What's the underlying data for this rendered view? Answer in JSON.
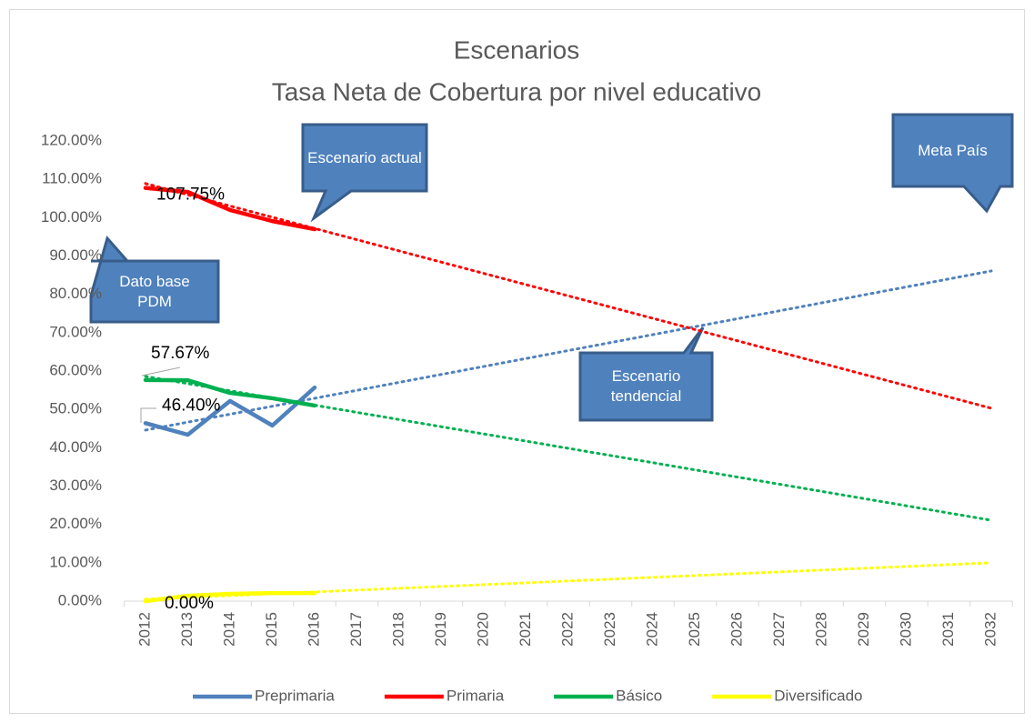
{
  "chart_data": {
    "type": "line",
    "title": "Escenarios",
    "subtitle": "Tasa Neta de Cobertura por nivel educativo",
    "categories": [
      "2012",
      "2013",
      "2014",
      "2015",
      "2016",
      "2017",
      "2018",
      "2019",
      "2020",
      "2021",
      "2022",
      "2023",
      "2024",
      "2025",
      "2026",
      "2027",
      "2028",
      "2029",
      "2030",
      "2031",
      "2032"
    ],
    "ylim": [
      0,
      120
    ],
    "yticks": [
      {
        "value": 0,
        "label": "0.00%"
      },
      {
        "value": 10,
        "label": "10.00%"
      },
      {
        "value": 20,
        "label": "20.00%"
      },
      {
        "value": 30,
        "label": "30.00%"
      },
      {
        "value": 40,
        "label": "40.00%"
      },
      {
        "value": 50,
        "label": "50.00%"
      },
      {
        "value": 60,
        "label": "60.00%"
      },
      {
        "value": 70,
        "label": "70.00%"
      },
      {
        "value": 80,
        "label": "80.00%"
      },
      {
        "value": 90,
        "label": "90.00%"
      },
      {
        "value": 100,
        "label": "100.00%"
      },
      {
        "value": 110,
        "label": "110.00%"
      },
      {
        "value": 120,
        "label": "120.00%"
      }
    ],
    "grid": false,
    "legend": "bottom",
    "series": [
      {
        "name": "Preprimaria",
        "color": "#4f81bd",
        "values": [
          46.4,
          43.4,
          52.2,
          45.8,
          55.7,
          null,
          null,
          null,
          null,
          null,
          null,
          null,
          null,
          null,
          null,
          null,
          null,
          null,
          null,
          null,
          null
        ],
        "value_labels": [
          "46.40%",
          null,
          null,
          null,
          null,
          null,
          null,
          null,
          null,
          null,
          null,
          null,
          null,
          null,
          null,
          null,
          null,
          null,
          null,
          null,
          null
        ],
        "trend": [
          44.6,
          86.1
        ]
      },
      {
        "name": "Primaria",
        "color": "#ff0000",
        "values": [
          107.75,
          106.7,
          102,
          99.1,
          97,
          null,
          null,
          null,
          null,
          null,
          null,
          null,
          null,
          null,
          null,
          null,
          null,
          null,
          null,
          null,
          null
        ],
        "value_labels": [
          "107.75%",
          null,
          null,
          null,
          null,
          null,
          null,
          null,
          null,
          null,
          null,
          null,
          null,
          null,
          null,
          null,
          null,
          null,
          null,
          null,
          null
        ],
        "trend": [
          108.9,
          50.3
        ]
      },
      {
        "name": "Básico",
        "color": "#00b050",
        "values": [
          57.67,
          57.6,
          54.3,
          52.9,
          51,
          null,
          null,
          null,
          null,
          null,
          null,
          null,
          null,
          null,
          null,
          null,
          null,
          null,
          null,
          null,
          null
        ],
        "value_labels": [
          "57.67%",
          null,
          null,
          null,
          null,
          null,
          null,
          null,
          null,
          null,
          null,
          null,
          null,
          null,
          null,
          null,
          null,
          null,
          null,
          null,
          null
        ],
        "trend": [
          58.6,
          21.1
        ]
      },
      {
        "name": "Diversificado",
        "color": "#ffff00",
        "values": [
          0,
          1.4,
          1.9,
          2.1,
          2.1,
          null,
          null,
          null,
          null,
          null,
          null,
          null,
          null,
          null,
          null,
          null,
          null,
          null,
          null,
          null,
          null
        ],
        "value_labels": [
          "0.00%",
          null,
          null,
          null,
          null,
          null,
          null,
          null,
          null,
          null,
          null,
          null,
          null,
          null,
          null,
          null,
          null,
          null,
          null,
          null,
          null
        ],
        "trend": [
          0.5,
          10
        ]
      }
    ],
    "annotations": [
      {
        "text": "Escenario actual"
      },
      {
        "text": "Meta País"
      },
      {
        "text": "Dato base PDM"
      },
      {
        "text": "Escenario tendencial"
      }
    ]
  }
}
